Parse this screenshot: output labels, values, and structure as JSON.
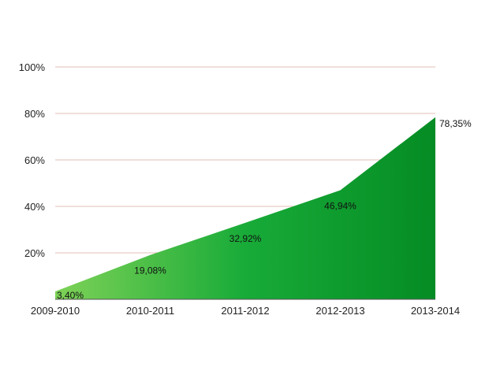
{
  "chart_data": {
    "type": "area",
    "categories": [
      "2009-2010",
      "2010-2011",
      "2011-2012",
      "2012-2013",
      "2013-2014"
    ],
    "values": [
      3.4,
      19.08,
      32.92,
      46.94,
      78.35
    ],
    "data_labels": [
      "3,40%",
      "19,08%",
      "32,92%",
      "46,94%",
      "78,35%"
    ],
    "y_ticks": [
      {
        "value": 20,
        "label": "20%"
      },
      {
        "value": 40,
        "label": "40%"
      },
      {
        "value": 60,
        "label": "60%"
      },
      {
        "value": 80,
        "label": "80%"
      },
      {
        "value": 100,
        "label": "100%"
      }
    ],
    "ylim": [
      0,
      100
    ],
    "grid": true,
    "legend": "none",
    "title": "",
    "xlabel": "",
    "ylabel": "",
    "colors": {
      "area_start": "#7ed257",
      "area_mid": "#18ab38",
      "area_end": "#058c24",
      "grid": "#e2bfb4",
      "axis": "#555555"
    }
  }
}
